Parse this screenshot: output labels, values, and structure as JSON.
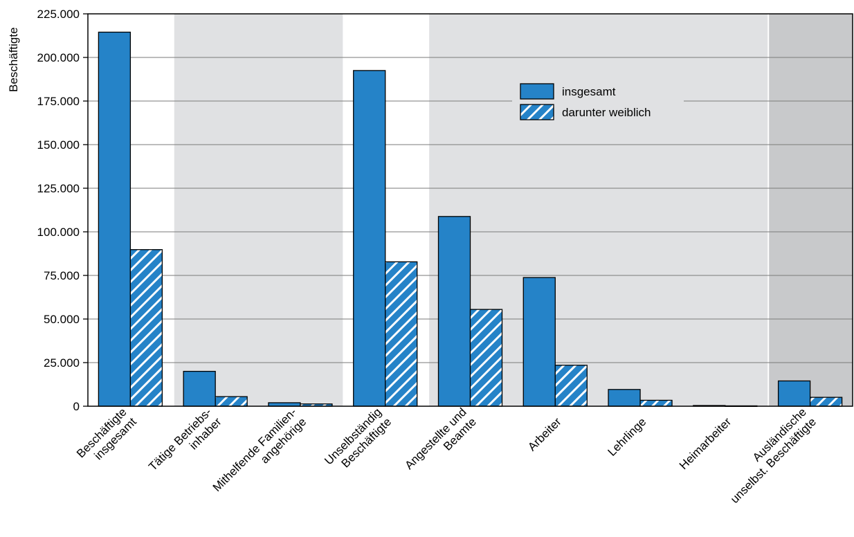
{
  "chart_data": {
    "type": "bar",
    "ylabel": "Beschäftigte",
    "ylim": [
      0,
      225000
    ],
    "yticks": [
      0,
      25000,
      50000,
      75000,
      100000,
      125000,
      150000,
      175000,
      200000,
      225000
    ],
    "ytick_labels": [
      "0",
      "25.000",
      "50.000",
      "75.000",
      "100.000",
      "125.000",
      "150.000",
      "175.000",
      "200.000",
      "225.000"
    ],
    "categories": [
      [
        "Beschäftigte",
        "insgesamt"
      ],
      [
        "Tätige Betriebs-",
        "inhaber"
      ],
      [
        "Mithelfende Familien-",
        "angehörige"
      ],
      [
        "Unselbständig",
        "Beschäftigte"
      ],
      [
        "Angestellte und",
        "Beamte"
      ],
      [
        "Arbeiter"
      ],
      [
        "Lehrlinge"
      ],
      [
        "Heimarbeiter"
      ],
      [
        "Ausländische",
        "unselbst. Beschäftigte"
      ]
    ],
    "series": [
      {
        "name": "insgesamt",
        "color": "#2583c8",
        "pattern": "solid",
        "values": [
          214500,
          20000,
          2000,
          192500,
          108800,
          73800,
          9600,
          400,
          14500
        ]
      },
      {
        "name": "darunter weiblich",
        "color": "#2583c8",
        "pattern": "hatched",
        "values": [
          89800,
          5500,
          1300,
          82800,
          55500,
          23500,
          3400,
          200,
          5100
        ]
      }
    ],
    "background_bands": [
      {
        "from_category": 1,
        "to_category": 2,
        "shade": "#e0e1e3"
      },
      {
        "from_category": 4,
        "to_category": 7,
        "shade": "#e0e1e3"
      },
      {
        "from_category": 8,
        "to_category": 8,
        "shade": "#c8c9cb"
      }
    ],
    "legend_position": "top-right",
    "grid": true
  }
}
